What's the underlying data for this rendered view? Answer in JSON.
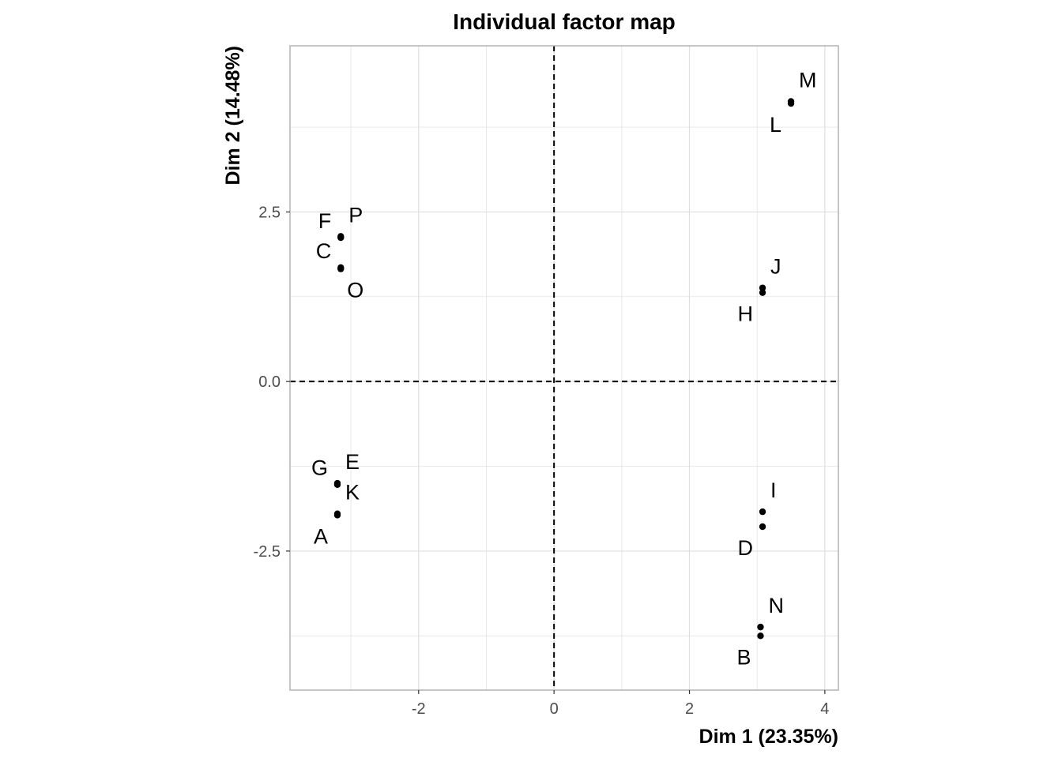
{
  "chart_data": {
    "type": "scatter",
    "title": "Individual factor map",
    "xlabel": "Dim 1 (23.35%)",
    "ylabel": "Dim 2 (14.48%)",
    "xlim": [
      -3.9,
      4.2
    ],
    "ylim": [
      -4.55,
      4.95
    ],
    "x_ticks": [
      -2,
      0,
      2,
      4
    ],
    "y_ticks": [
      -2.5,
      0.0,
      2.5
    ],
    "x_tick_labels": [
      "-2",
      "0",
      "2",
      "4"
    ],
    "y_tick_labels": [
      "-2.5",
      "0.0",
      "2.5"
    ],
    "grid": true,
    "reference_lines": {
      "x": 0,
      "y": 0,
      "style": "dashed"
    },
    "point_color": "#000000",
    "grid_color": "#dedede",
    "border_color": "#b3b3b3",
    "points": [
      {
        "label": "A",
        "x": -3.2,
        "y": -1.97,
        "label_pos": "lower-left"
      },
      {
        "label": "K",
        "x": -3.2,
        "y": -1.95,
        "label_pos": "upper-right"
      },
      {
        "label": "G",
        "x": -3.2,
        "y": -1.52,
        "label_pos": "upper-left"
      },
      {
        "label": "E",
        "x": -3.2,
        "y": -1.5,
        "label_pos": "upper-right"
      },
      {
        "label": "C",
        "x": -3.15,
        "y": 1.68,
        "label_pos": "upper-left"
      },
      {
        "label": "O",
        "x": -3.15,
        "y": 1.66,
        "label_pos": "lower-right"
      },
      {
        "label": "F",
        "x": -3.15,
        "y": 2.12,
        "label_pos": "upper-left"
      },
      {
        "label": "P",
        "x": -3.15,
        "y": 2.14,
        "label_pos": "upper-right"
      },
      {
        "label": "M",
        "x": 3.5,
        "y": 4.13,
        "label_pos": "upper-right"
      },
      {
        "label": "L",
        "x": 3.5,
        "y": 4.1,
        "label_pos": "lower-left"
      },
      {
        "label": "J",
        "x": 3.08,
        "y": 1.38,
        "label_pos": "upper-right"
      },
      {
        "label": "H",
        "x": 3.08,
        "y": 1.31,
        "label_pos": "lower-left"
      },
      {
        "label": "I",
        "x": 3.08,
        "y": -1.92,
        "label_pos": "upper-right"
      },
      {
        "label": "D",
        "x": 3.08,
        "y": -2.14,
        "label_pos": "lower-left"
      },
      {
        "label": "N",
        "x": 3.05,
        "y": -3.62,
        "label_pos": "upper-right"
      },
      {
        "label": "B",
        "x": 3.05,
        "y": -3.75,
        "label_pos": "lower-left"
      }
    ]
  }
}
